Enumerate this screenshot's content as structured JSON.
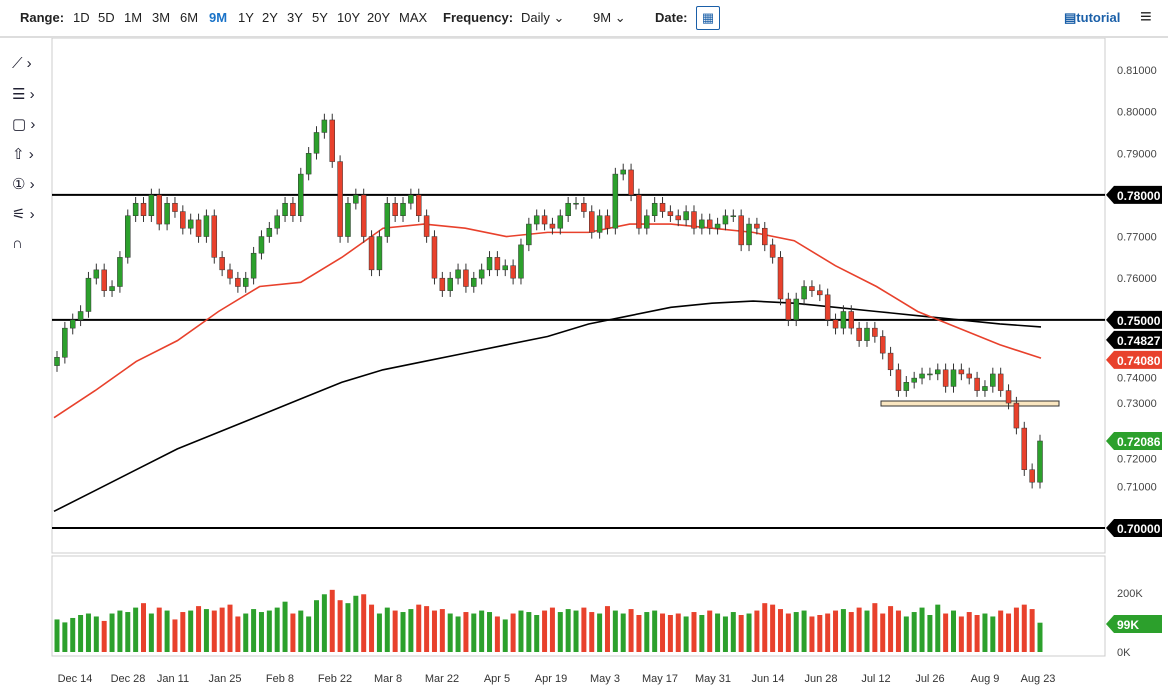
{
  "toolbar": {
    "range_label": "Range:",
    "ranges": [
      "1D",
      "5D",
      "1M",
      "3M",
      "6M",
      "9M",
      "1Y",
      "2Y",
      "3Y",
      "5Y",
      "10Y",
      "20Y",
      "MAX"
    ],
    "active_range": "9M",
    "frequency_label": "Frequency:",
    "frequency": "Daily",
    "period": "9M",
    "date_label": "Date:",
    "tutorial": "tutorial"
  },
  "colors": {
    "up": "#2ca02c",
    "down": "#e8412c",
    "ma50": "#e8412c",
    "ma200": "#000000"
  },
  "chart_data": {
    "type": "candlestick",
    "y_ticks": [
      "0.81000",
      "0.80000",
      "0.79000",
      "0.78000",
      "0.77000",
      "0.76000",
      "0.75000",
      "0.74000",
      "0.73000",
      "0.72000",
      "0.71000",
      "0.70000"
    ],
    "ylim": [
      0.7,
      0.81
    ],
    "x_ticks": [
      "Dec 14",
      "Dec 28",
      "Jan 11",
      "Jan 25",
      "Feb 8",
      "Feb 22",
      "Mar 8",
      "Mar 22",
      "Apr 5",
      "Apr 19",
      "May 3",
      "May 17",
      "May 31",
      "Jun 14",
      "Jun 28",
      "Jul 12",
      "Jul 26",
      "Aug 9",
      "Aug 23"
    ],
    "first_open": 0.739,
    "closes": [
      0.741,
      0.748,
      0.75,
      0.752,
      0.76,
      0.762,
      0.757,
      0.758,
      0.765,
      0.775,
      0.778,
      0.775,
      0.78,
      0.773,
      0.778,
      0.776,
      0.772,
      0.774,
      0.77,
      0.775,
      0.765,
      0.762,
      0.76,
      0.758,
      0.76,
      0.766,
      0.77,
      0.772,
      0.775,
      0.778,
      0.775,
      0.785,
      0.79,
      0.795,
      0.798,
      0.788,
      0.77,
      0.778,
      0.78,
      0.77,
      0.762,
      0.77,
      0.778,
      0.775,
      0.778,
      0.78,
      0.775,
      0.77,
      0.76,
      0.757,
      0.76,
      0.762,
      0.758,
      0.76,
      0.762,
      0.765,
      0.762,
      0.763,
      0.76,
      0.768,
      0.773,
      0.775,
      0.773,
      0.772,
      0.775,
      0.778,
      0.778,
      0.776,
      0.771,
      0.775,
      0.772,
      0.785,
      0.786,
      0.78,
      0.772,
      0.775,
      0.778,
      0.776,
      0.775,
      0.774,
      0.776,
      0.772,
      0.774,
      0.772,
      0.773,
      0.775,
      0.775,
      0.768,
      0.773,
      0.772,
      0.768,
      0.765,
      0.755,
      0.75,
      0.755,
      0.758,
      0.757,
      0.756,
      0.75,
      0.748,
      0.752,
      0.748,
      0.745,
      0.748,
      0.746,
      0.742,
      0.738,
      0.733,
      0.735,
      0.736,
      0.737,
      0.737,
      0.738,
      0.734,
      0.738,
      0.737,
      0.736,
      0.733,
      0.734,
      0.737,
      0.733,
      0.73,
      0.724,
      0.714,
      0.711,
      0.7209
    ],
    "ma50": [
      0.7265,
      0.733,
      0.74,
      0.745,
      0.752,
      0.758,
      0.759,
      0.765,
      0.772,
      0.773,
      0.772,
      0.77,
      0.771,
      0.771,
      0.773,
      0.773,
      0.772,
      0.771,
      0.769,
      0.763,
      0.758,
      0.752,
      0.748,
      0.744,
      0.7408
    ],
    "ma200": [
      0.704,
      0.709,
      0.714,
      0.719,
      0.723,
      0.727,
      0.731,
      0.735,
      0.738,
      0.74,
      0.742,
      0.744,
      0.746,
      0.749,
      0.751,
      0.753,
      0.754,
      0.7545,
      0.754,
      0.753,
      0.752,
      0.751,
      0.75,
      0.749,
      0.7483
    ],
    "horizontal_lines": [
      0.78,
      0.75,
      0.7
    ],
    "zone": {
      "low": 0.7293,
      "high": 0.7305
    },
    "labels": {
      "h78": "0.78000",
      "h75": "0.75000",
      "ma200_last": "0.74827",
      "ma50_last": "0.74080",
      "close_last": "0.72086",
      "h70": "0.70000"
    },
    "volume": {
      "ticks": [
        "200K",
        "0K"
      ],
      "last": "99K",
      "max": 250,
      "values": [
        110,
        100,
        115,
        125,
        130,
        120,
        105,
        130,
        140,
        135,
        150,
        165,
        130,
        150,
        140,
        110,
        135,
        140,
        155,
        145,
        140,
        150,
        160,
        120,
        130,
        145,
        135,
        140,
        150,
        170,
        130,
        140,
        120,
        175,
        195,
        210,
        175,
        165,
        190,
        195,
        160,
        130,
        150,
        140,
        135,
        145,
        160,
        155,
        140,
        145,
        130,
        120,
        135,
        130,
        140,
        135,
        120,
        110,
        130,
        140,
        135,
        125,
        140,
        150,
        135,
        145,
        140,
        150,
        135,
        130,
        155,
        140,
        130,
        145,
        125,
        135,
        140,
        130,
        125,
        130,
        120,
        135,
        125,
        140,
        130,
        120,
        135,
        125,
        130,
        140,
        165,
        160,
        145,
        130,
        135,
        140,
        120,
        125,
        130,
        140,
        145,
        135,
        150,
        140,
        165,
        130,
        155,
        140,
        120,
        135,
        150,
        125,
        160,
        130,
        140,
        120,
        135,
        125,
        130,
        120,
        140,
        130,
        150,
        160,
        145,
        99
      ]
    }
  }
}
